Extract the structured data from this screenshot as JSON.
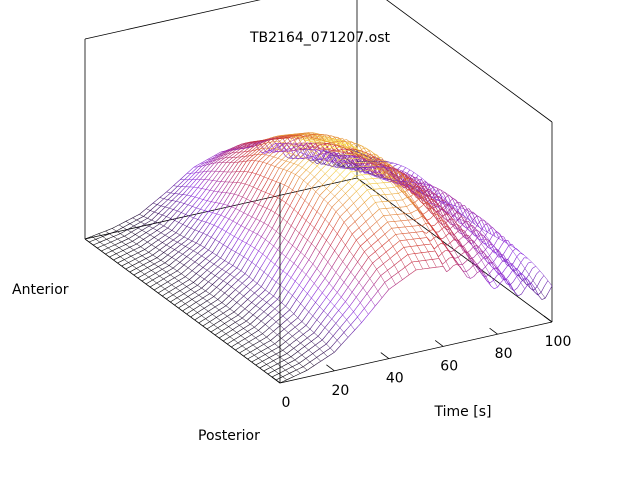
{
  "chart_data": {
    "type": "surface",
    "title": "TB2164_071207.ost",
    "xlabel": "Time [s]",
    "y_axis_labels": {
      "near_end": "Posterior",
      "far_end": "Anterior"
    },
    "xlim": [
      0,
      100
    ],
    "x_ticks": [
      0,
      20,
      40,
      60,
      80,
      100
    ],
    "tick_labels": [
      "0",
      "20",
      "40",
      "60",
      "80",
      "100"
    ],
    "grid": false,
    "colormap": [
      "#000000",
      "#8a2be2",
      "#d0322f",
      "#ffff44"
    ],
    "surface_profile": {
      "time": [
        0,
        10,
        20,
        30,
        40,
        50,
        60,
        70,
        80,
        90,
        100
      ],
      "relative_height": [
        0.0,
        0.08,
        0.22,
        0.5,
        0.82,
        0.98,
        0.95,
        0.8,
        0.6,
        0.45,
        0.35
      ]
    }
  }
}
